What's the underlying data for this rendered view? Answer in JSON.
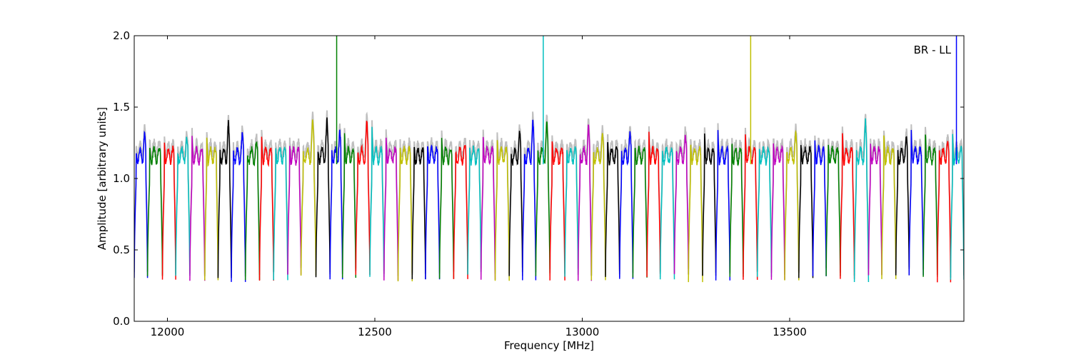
{
  "chart_data": {
    "type": "line",
    "title": "",
    "xlabel": "Frequency [MHz]",
    "ylabel": "Amplitude [arbitrary units]",
    "xlim": [
      11920,
      13920
    ],
    "ylim": [
      0.0,
      2.0
    ],
    "xticks": [
      12000,
      12500,
      13000,
      13500
    ],
    "yticks": [
      0.0,
      0.5,
      1.0,
      1.5,
      2.0
    ],
    "xtick_labels": [
      "12000",
      "12500",
      "13000",
      "13500"
    ],
    "ytick_labels": [
      "0.0",
      "0.5",
      "1.0",
      "1.5",
      "2.0"
    ],
    "annotation": "BR - LL",
    "grid": false,
    "background_trace_color": "#bfbfbf",
    "channel_colors": [
      "#0000ff",
      "#008000",
      "#ff0000",
      "#00bfbf",
      "#bf00bf",
      "#bfbf00",
      "#000000"
    ],
    "channel_edges": [
      11920,
      11952,
      11988,
      12020,
      12054,
      12090,
      12122,
      12154,
      12188,
      12222,
      12256,
      12290,
      12322,
      12358,
      12392,
      12422,
      12454,
      12488,
      12522,
      12556,
      12590,
      12622,
      12656,
      12690,
      12724,
      12756,
      12790,
      12824,
      12856,
      12888,
      12922,
      12958,
      12990,
      13022,
      13056,
      13090,
      13122,
      13156,
      13188,
      13222,
      13256,
      13290,
      13322,
      13356,
      13388,
      13422,
      13456,
      13488,
      13522,
      13556,
      13588,
      13622,
      13656,
      13690,
      13722,
      13756,
      13788,
      13822,
      13856,
      13888,
      13920
    ],
    "spikes": [
      {
        "x": 12408,
        "y": 2.0,
        "color": "#008000"
      },
      {
        "x": 12906,
        "y": 2.0,
        "color": "#00bfbf"
      },
      {
        "x": 13406,
        "y": 2.0,
        "color": "#bfbf00"
      },
      {
        "x": 13902,
        "y": 2.0,
        "color": "#0000ff"
      }
    ]
  }
}
